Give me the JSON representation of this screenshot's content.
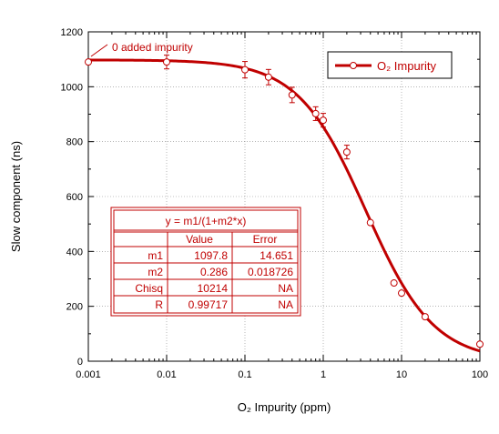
{
  "chart_data": {
    "type": "scatter",
    "title": "",
    "xlabel": "O₂ Impurity (ppm)",
    "ylabel": "Slow component (ns)",
    "x_scale": "log",
    "xlim": [
      0.001,
      100
    ],
    "ylim": [
      0,
      1200
    ],
    "x_ticks": [
      0.001,
      0.01,
      0.1,
      1,
      10,
      100
    ],
    "x_tick_labels": [
      "0.001",
      "0.01",
      "0.1",
      "1",
      "10",
      "100"
    ],
    "y_ticks": [
      0,
      200,
      400,
      600,
      800,
      1000,
      1200
    ],
    "y_tick_labels": [
      "0",
      "200",
      "400",
      "600",
      "800",
      "1000",
      "1200"
    ],
    "grid": true,
    "legend": {
      "position": "top-right",
      "entries": [
        "O₂ Impurity"
      ]
    },
    "color": "#c00000",
    "series": [
      {
        "name": "O₂ Impurity",
        "points": [
          {
            "x": 0.001,
            "y": 1090,
            "err": 0
          },
          {
            "x": 0.01,
            "y": 1090,
            "err": 25
          },
          {
            "x": 0.1,
            "y": 1062,
            "err": 30
          },
          {
            "x": 0.2,
            "y": 1035,
            "err": 28
          },
          {
            "x": 0.4,
            "y": 970,
            "err": 28
          },
          {
            "x": 0.8,
            "y": 902,
            "err": 25
          },
          {
            "x": 1.0,
            "y": 878,
            "err": 25
          },
          {
            "x": 2.0,
            "y": 762,
            "err": 25
          },
          {
            "x": 4.0,
            "y": 505,
            "err": 0
          },
          {
            "x": 8.0,
            "y": 285,
            "err": 0
          },
          {
            "x": 10.0,
            "y": 248,
            "err": 0
          },
          {
            "x": 20.0,
            "y": 162,
            "err": 0
          },
          {
            "x": 100.0,
            "y": 62,
            "err": 0
          }
        ]
      }
    ],
    "fit": {
      "m1": 1097.8,
      "m2": 0.286
    },
    "annotations": [
      {
        "text": "0 added impurity",
        "x": 0.001,
        "y": 1090
      }
    ],
    "fit_table": {
      "title": "y = m1/(1+m2*x)",
      "headers": [
        "",
        "Value",
        "Error"
      ],
      "rows": [
        [
          "m1",
          "1097.8",
          "14.651"
        ],
        [
          "m2",
          "0.286",
          "0.018726"
        ],
        [
          "Chisq",
          "10214",
          "NA"
        ],
        [
          "R",
          "0.99717",
          "NA"
        ]
      ]
    }
  }
}
